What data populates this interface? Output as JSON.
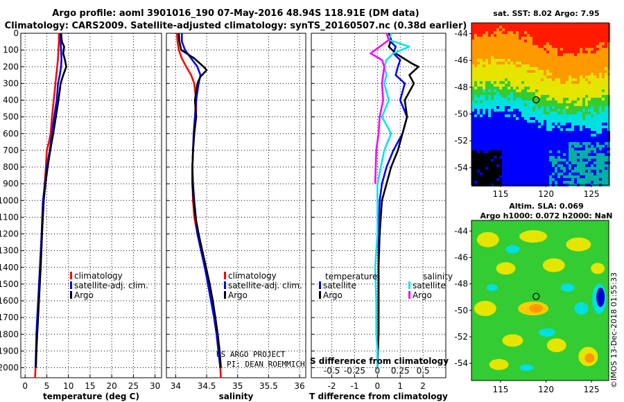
{
  "header": {
    "title_line1": "Argo profile: aoml 3901016_190 07-May-2016 48.94S 118.91E (DM data)",
    "title_line2": "Climatology: CARS2009. Satellite-adjusted climatology: synTS_20160507.nc (0.38d earlier)"
  },
  "colors": {
    "climatology": "#ff0000",
    "satellite": "#0000ff",
    "argo": "#000000",
    "satellite_salinity": "#00e5ee",
    "argo_salinity": "#ff00ff"
  },
  "chart_data": [
    {
      "type": "line",
      "id": "temperature",
      "xlabel": "temperature (deg C)",
      "ylabel": "pressure",
      "xlim": [
        -1,
        31.5
      ],
      "ylim": [
        2060,
        0
      ],
      "xticks": [
        0,
        5,
        10,
        15,
        20,
        25,
        30
      ],
      "yticks": [
        0,
        100,
        200,
        300,
        400,
        500,
        600,
        700,
        800,
        900,
        1000,
        1100,
        1200,
        1300,
        1400,
        1500,
        1600,
        1700,
        1800,
        1900,
        2000
      ],
      "legend": [
        "climatology",
        "satellite-adj. clim.",
        "Argo"
      ],
      "series": [
        {
          "name": "climatology",
          "color": "#ff0000",
          "x": [
            7.8,
            7.8,
            7.7,
            7.6,
            7.4,
            7.2,
            7.0,
            6.6,
            6.2,
            5.9,
            5.5,
            5.0,
            4.8,
            4.5,
            4.2,
            3.9,
            3.6,
            3.3,
            3.1,
            2.9,
            2.7,
            2.6,
            2.4,
            2.3
          ],
          "y": [
            0,
            50,
            100,
            150,
            200,
            250,
            300,
            400,
            500,
            600,
            650,
            700,
            800,
            900,
            1000,
            1200,
            1400,
            1500,
            1600,
            1700,
            1800,
            1900,
            2000,
            2060
          ]
        },
        {
          "name": "satellite-adj. clim.",
          "color": "#0000ff",
          "x": [
            8.2,
            8.2,
            8.3,
            8.4,
            8.3,
            8.0,
            7.6,
            7.3,
            6.7,
            6.2,
            5.7,
            5.0,
            4.6,
            4.1,
            3.8,
            3.4,
            3.0,
            2.8,
            2.6,
            2.5,
            2.4
          ],
          "y": [
            0,
            50,
            100,
            150,
            200,
            250,
            300,
            400,
            500,
            600,
            700,
            800,
            900,
            1000,
            1200,
            1400,
            1600,
            1700,
            1800,
            1900,
            2000
          ]
        },
        {
          "name": "Argo",
          "color": "#000000",
          "x": [
            8.3,
            8.5,
            9.0,
            8.8,
            9.2,
            9.5,
            8.8,
            8.2,
            7.7,
            7.1,
            6.5,
            5.8,
            5.2,
            4.7,
            4.3,
            3.9,
            3.6,
            3.2,
            3.0,
            2.8,
            2.6,
            2.5
          ],
          "y": [
            0,
            50,
            80,
            120,
            160,
            200,
            250,
            300,
            400,
            500,
            600,
            700,
            800,
            900,
            1000,
            1200,
            1400,
            1600,
            1700,
            1800,
            1900,
            2000
          ]
        }
      ]
    },
    {
      "type": "line",
      "id": "salinity",
      "xlabel": "salinity",
      "xlim": [
        33.85,
        36.1
      ],
      "ylim": [
        2060,
        0
      ],
      "xticks": [
        34,
        34.5,
        35,
        35.5,
        36
      ],
      "legend": [
        "climatology",
        "satellite-adj. clim.",
        "Argo"
      ],
      "series": [
        {
          "name": "climatology",
          "color": "#ff0000",
          "x": [
            34.02,
            34.03,
            34.05,
            34.1,
            34.17,
            34.25,
            34.3,
            34.33,
            34.33,
            34.3,
            34.28,
            34.27,
            34.27,
            34.28,
            34.3,
            34.35,
            34.41,
            34.47,
            34.53,
            34.58,
            34.62,
            34.66,
            34.69,
            34.72,
            34.73
          ],
          "y": [
            0,
            50,
            100,
            150,
            200,
            250,
            300,
            400,
            500,
            600,
            700,
            800,
            900,
            1000,
            1100,
            1200,
            1300,
            1400,
            1500,
            1600,
            1700,
            1800,
            1900,
            2000,
            2060
          ]
        },
        {
          "name": "satellite-adj. clim.",
          "color": "#0000ff",
          "x": [
            34.1,
            34.1,
            34.15,
            34.25,
            34.35,
            34.4,
            34.37,
            34.33,
            34.31,
            34.29,
            34.28,
            34.27,
            34.28,
            34.3,
            34.35,
            34.41,
            34.47,
            34.52,
            34.57,
            34.62,
            34.66,
            34.69,
            34.72
          ],
          "y": [
            0,
            50,
            100,
            150,
            200,
            250,
            300,
            400,
            500,
            600,
            700,
            800,
            900,
            1000,
            1200,
            1300,
            1400,
            1500,
            1600,
            1700,
            1800,
            1900,
            2000
          ]
        },
        {
          "name": "Argo",
          "color": "#000000",
          "x": [
            34.05,
            34.06,
            34.09,
            34.3,
            34.45,
            34.5,
            34.4,
            34.35,
            34.31,
            34.33,
            34.3,
            34.28,
            34.27,
            34.27,
            34.29,
            34.32,
            34.37,
            34.43,
            34.49,
            34.55,
            34.6,
            34.64,
            34.68,
            34.71,
            34.73
          ],
          "y": [
            0,
            50,
            100,
            150,
            200,
            220,
            260,
            300,
            400,
            500,
            600,
            700,
            800,
            900,
            1000,
            1100,
            1200,
            1300,
            1400,
            1500,
            1600,
            1700,
            1800,
            1900,
            2000
          ]
        }
      ]
    },
    {
      "type": "line",
      "id": "difference",
      "xlabel": "T difference from climatology",
      "secondary_xlabel": "S difference from climatology",
      "xlim": [
        -2.9,
        3.0
      ],
      "ylim": [
        2060,
        0
      ],
      "xticks": [
        -2,
        -1,
        0,
        1,
        2
      ],
      "secondary_xticks": [
        -0.5,
        -0.25,
        0,
        0.25,
        0.5
      ],
      "legend_titles": [
        "temperature",
        "salinity"
      ],
      "legend": [
        "satellite",
        "Argo",
        "satellite",
        "Argo"
      ],
      "series": [
        {
          "name": "temperature satellite",
          "color": "#0000ff",
          "x": [
            0.6,
            0.5,
            0.8,
            0.7,
            1.0,
            0.9,
            0.8,
            1.2,
            1.0,
            1.3,
            1.1,
            0.7,
            0.4,
            0.2,
            0.1,
            0.05,
            0.05,
            0.05,
            0.05,
            0.0,
            0.0
          ],
          "y": [
            0,
            40,
            80,
            120,
            160,
            200,
            250,
            300,
            400,
            500,
            600,
            700,
            800,
            900,
            1000,
            1200,
            1400,
            1600,
            1800,
            1900,
            2000
          ]
        },
        {
          "name": "temperature Argo",
          "color": "#000000",
          "x": [
            0.5,
            0.6,
            0.5,
            0.8,
            1.5,
            1.8,
            1.4,
            1.6,
            1.2,
            1.3,
            1.1,
            0.9,
            0.6,
            0.4,
            0.2,
            0.1,
            0.05,
            0.05,
            0.05,
            0.0
          ],
          "y": [
            0,
            40,
            80,
            120,
            180,
            200,
            250,
            300,
            400,
            500,
            600,
            700,
            800,
            900,
            1000,
            1200,
            1400,
            1600,
            1800,
            2000
          ]
        },
        {
          "name": "salinity satellite",
          "color": "#00e5ee",
          "x": [
            0.6,
            0.5,
            1.4,
            0.7,
            0.4,
            0.3,
            0.4,
            0.3,
            0.5,
            0.2,
            0.6,
            0.3,
            0.0,
            0.0,
            0.0,
            -0.1,
            -0.05,
            -0.05,
            0.0,
            0.0
          ],
          "y": [
            0,
            40,
            80,
            120,
            160,
            200,
            250,
            300,
            400,
            500,
            600,
            700,
            900,
            1000,
            1200,
            1400,
            1600,
            1800,
            1900,
            2000
          ]
        },
        {
          "name": "salinity Argo",
          "color": "#ff00ff",
          "x": [
            0.4,
            0.5,
            0.1,
            -0.3,
            0.2,
            0.3,
            0.2,
            0.25,
            0.1,
            0.05,
            -0.05,
            -0.1
          ],
          "y": [
            0,
            40,
            80,
            120,
            160,
            200,
            300,
            400,
            500,
            600,
            700,
            900
          ]
        }
      ]
    }
  ],
  "credit": {
    "line1": "US ARGO PROJECT",
    "line2": "PI: DEAN ROEMMICH"
  },
  "sst_map": {
    "title": "sat. SST: 8.02 Argo: 7.95",
    "x_ticks": [
      "115",
      "120",
      "125"
    ],
    "y_ticks": [
      "-44",
      "-46",
      "-48",
      "-50",
      "-52",
      "-54"
    ],
    "bands": [
      {
        "name": "warm",
        "color": "#ff1a00"
      },
      {
        "name": "orange",
        "color": "#ff9900"
      },
      {
        "name": "yellow",
        "color": "#e5e500"
      },
      {
        "name": "green",
        "color": "#33cc33"
      },
      {
        "name": "cyan",
        "color": "#00e0e0"
      },
      {
        "name": "blue",
        "color": "#0000ff"
      },
      {
        "name": "teal",
        "color": "#00b0a0"
      },
      {
        "name": "cold",
        "color": "#000000"
      }
    ]
  },
  "sla_map": {
    "title_line1": "Altim. SLA: 0.069",
    "title_line2": "Argo h1000: 0.072 h2000: NaN",
    "x_ticks": [
      "115",
      "120",
      "125"
    ],
    "y_ticks": [
      "-44",
      "-46",
      "-48",
      "-50",
      "-52",
      "-54"
    ],
    "background_color": "#33cc33"
  },
  "imos_label": "©IMOS 13-Dec-2018 01:55:33"
}
